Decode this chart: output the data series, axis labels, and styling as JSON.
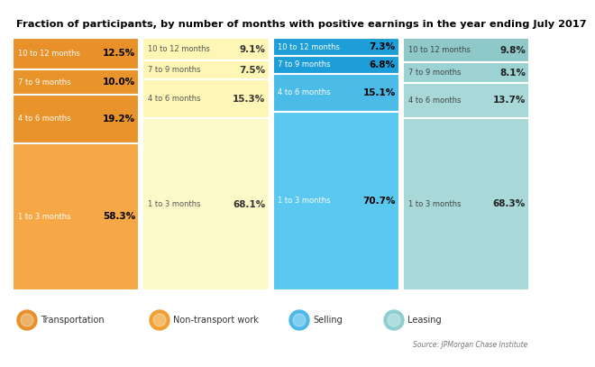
{
  "title": "Fraction of participants, by number of months with positive earnings in the year ending July 2017",
  "columns": [
    {
      "name": "Transportation",
      "segments": [
        {
          "label": "10 to 12 months",
          "value": 12.5
        },
        {
          "label": "7 to 9 months",
          "value": 10.0
        },
        {
          "label": "4 to 6 months",
          "value": 19.2
        },
        {
          "label": "1 to 3 months",
          "value": 58.3
        }
      ],
      "bg_color": "#F5A030",
      "seg_colors": [
        "#E8912A",
        "#E8942A",
        "#E8942A",
        "#F5A845"
      ],
      "text_color": "white",
      "value_color": "black"
    },
    {
      "name": "Non-transport work",
      "segments": [
        {
          "label": "10 to 12 months",
          "value": 9.1
        },
        {
          "label": "7 to 9 months",
          "value": 7.5
        },
        {
          "label": "4 to 6 months",
          "value": 15.3
        },
        {
          "label": "1 to 3 months",
          "value": 68.1
        }
      ],
      "bg_color": "#FEF9C8",
      "seg_colors": [
        "#FEF6B5",
        "#FEF6B5",
        "#FEF6B5",
        "#FEF9C8"
      ],
      "text_color": "#555555",
      "value_color": "#333333"
    },
    {
      "name": "Selling",
      "segments": [
        {
          "label": "10 to 12 months",
          "value": 7.3
        },
        {
          "label": "7 to 9 months",
          "value": 6.8
        },
        {
          "label": "4 to 6 months",
          "value": 15.1
        },
        {
          "label": "1 to 3 months",
          "value": 70.7
        }
      ],
      "bg_color": "#5BC8F0",
      "seg_colors": [
        "#1E9ED8",
        "#1E9ED8",
        "#4BBCE8",
        "#5BC8F0"
      ],
      "text_color": "white",
      "value_color": "black"
    },
    {
      "name": "Leasing",
      "segments": [
        {
          "label": "10 to 12 months",
          "value": 9.8
        },
        {
          "label": "7 to 9 months",
          "value": 8.1
        },
        {
          "label": "4 to 6 months",
          "value": 13.7
        },
        {
          "label": "1 to 3 months",
          "value": 68.3
        }
      ],
      "bg_color": "#A8D8D8",
      "seg_colors": [
        "#8EC8C8",
        "#9DD2D2",
        "#A8D8D8",
        "#A8D8D8"
      ],
      "text_color": "#444444",
      "value_color": "#222222"
    }
  ],
  "source": "Source: JPMorgan Chase Institute",
  "legend_icon_colors": [
    "#E8912A",
    "#F0A030",
    "#4BB8E8",
    "#8DCFCF"
  ],
  "legend_labels": [
    "Transportation",
    "Non-transport work",
    "Selling",
    "Leasing"
  ]
}
